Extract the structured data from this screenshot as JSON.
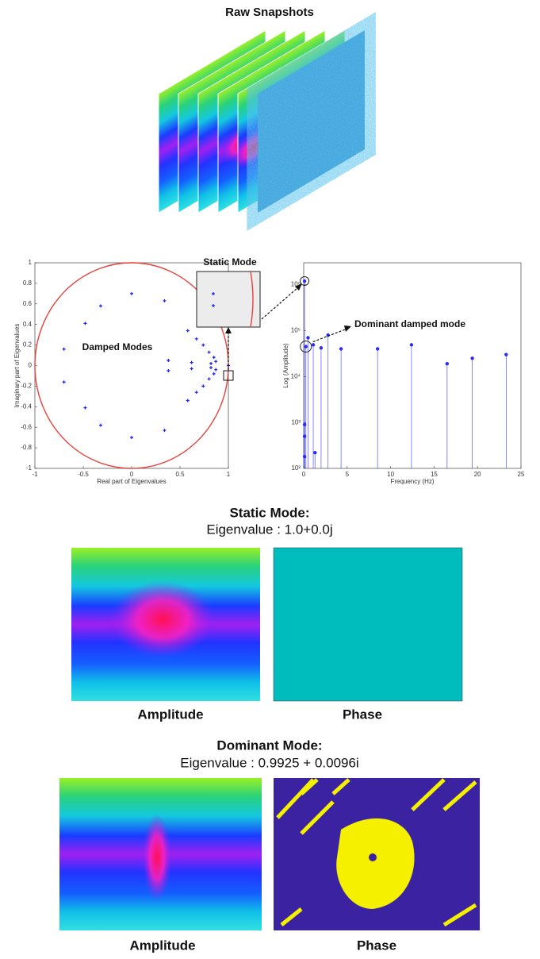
{
  "title": "Raw Snapshots",
  "chart_data": [
    {
      "type": "scatter",
      "xlabel": "Real part of Eigenvalues",
      "ylabel": "Imaginary part of Eigenvalues",
      "annotations": [
        "Damped Modes",
        "Static Mode"
      ],
      "color": "#1a1aff",
      "circle_color": "#e8403a",
      "x": [
        0,
        0,
        -0.32,
        -0.32,
        0.34,
        0.34,
        -0.48,
        -0.48,
        -0.7,
        -0.7,
        0.58,
        0.58,
        0.67,
        0.67,
        0.38,
        0.38,
        0.74,
        0.74,
        0.8,
        0.8,
        0.85,
        0.85,
        0.82,
        0.82,
        0.62,
        0.62,
        0.87,
        0.87,
        1
      ],
      "values": [
        0.7,
        -0.7,
        0.58,
        -0.58,
        0.63,
        -0.63,
        0.41,
        -0.41,
        0.16,
        -0.16,
        0.34,
        -0.34,
        0.26,
        -0.26,
        0.05,
        -0.05,
        0.2,
        -0.2,
        0.13,
        -0.13,
        0.08,
        -0.08,
        0.02,
        -0.02,
        0.03,
        -0.03,
        0.04,
        -0.04,
        0
      ],
      "xlim": [
        -1,
        1
      ],
      "xticks": [
        -1,
        -0.5,
        0,
        0.5,
        1
      ],
      "ylim": [
        -1,
        1
      ],
      "yticks": [
        -1,
        -0.8,
        -0.6,
        -0.4,
        -0.2,
        0,
        0.2,
        0.4,
        0.6,
        0.8,
        1
      ]
    },
    {
      "type": "stem",
      "xlabel": "Frequency (Hz)",
      "ylabel": "Log (Amplitude)",
      "annotations": [
        "Dominant damped mode"
      ],
      "color": "#2a2aff",
      "log_y": true,
      "x": [
        0.1,
        0.1,
        0.1,
        0.1,
        0.25,
        0.5,
        1.1,
        1.3,
        2.0,
        2.8,
        4.3,
        8.5,
        12.4,
        16.5,
        19.4,
        23.3
      ],
      "values": [
        1200000,
        900,
        500,
        180,
        45000,
        70000,
        49000,
        220,
        42000,
        80000,
        40000,
        40000,
        49000,
        19000,
        25000,
        30000
      ],
      "xlim": [
        0,
        25
      ],
      "xticks": [
        0,
        5,
        10,
        15,
        20,
        25
      ],
      "ylim": [
        100,
        3000000
      ],
      "yticks": [
        {
          "value": 100,
          "label": "10²"
        },
        {
          "value": 1000,
          "label": "10³"
        },
        {
          "value": 10000,
          "label": "10⁴"
        },
        {
          "value": 100000,
          "label": "10⁵"
        },
        {
          "value": 1000000,
          "label": "10⁶"
        }
      ]
    }
  ],
  "static_mode": {
    "title": "Static Mode:",
    "eigenvalue": "Eigenvalue : 1.0+0.0j",
    "amplitude_label": "Amplitude",
    "phase_label": "Phase"
  },
  "dominant_mode": {
    "title": "Dominant Mode:",
    "eigenvalue": "Eigenvalue : 0.9925 + 0.0096i",
    "amplitude_label": "Amplitude",
    "phase_label": "Phase"
  }
}
